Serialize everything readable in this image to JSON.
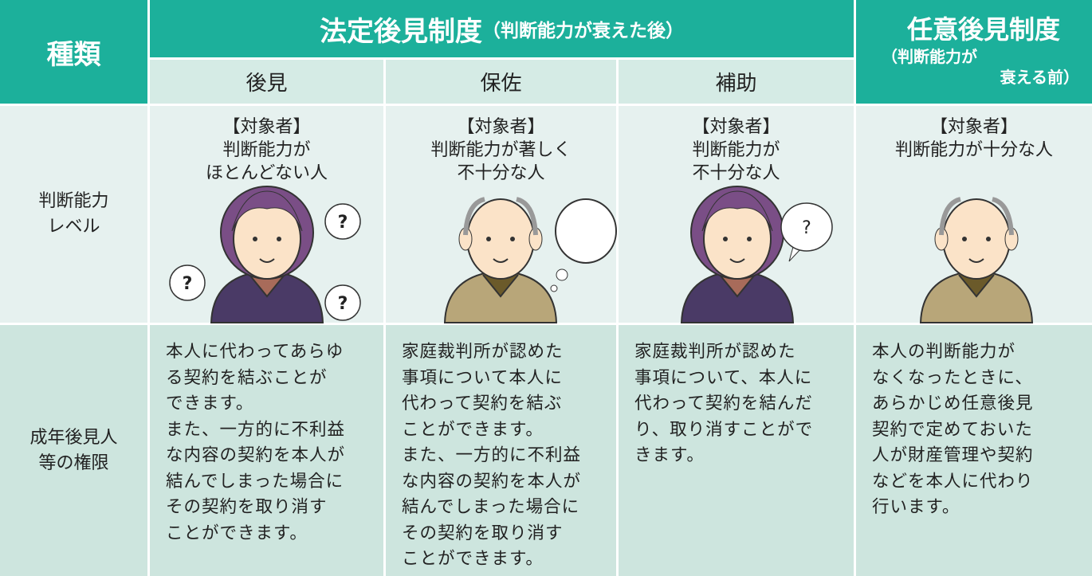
{
  "header": {
    "type_label": "種類",
    "statutory": {
      "title": "法定後見制度",
      "note": "（判断能力が衰えた後）",
      "kinds": [
        "後見",
        "保佐",
        "補助"
      ]
    },
    "voluntary": {
      "title": "任意後見制度",
      "note": [
        "（判断能力が",
        "衰える前）"
      ]
    }
  },
  "rows": [
    {
      "label": [
        "判断能力",
        "レベル"
      ],
      "cells": [
        {
          "lines": [
            "【対象者】",
            "判断能力が",
            "ほとんどない人"
          ],
          "marks": [
            "?",
            "?",
            "?"
          ]
        },
        {
          "lines": [
            "【対象者】",
            "判断能力が著しく",
            "不十分な人"
          ]
        },
        {
          "lines": [
            "【対象者】",
            "判断能力が",
            "不十分な人"
          ],
          "marks": [
            "?"
          ]
        },
        {
          "lines": [
            "【対象者】",
            "判断能力が十分な人"
          ]
        }
      ]
    },
    {
      "label": [
        "成年後見人",
        "等の権限"
      ],
      "cells": [
        {
          "lines": [
            "本人に代わってあらゆ",
            "る契約を結ぶことが",
            "できます。",
            "また、一方的に不利益",
            "な内容の契約を本人が",
            "結んでしまった場合に",
            "その契約を取り消す",
            "ことができます。"
          ]
        },
        {
          "lines": [
            "家庭裁判所が認めた",
            "事項について本人に",
            "代わって契約を結ぶ",
            "ことができます。",
            "また、一方的に不利益",
            "な内容の契約を本人が",
            "結んでしまった場合に",
            "その契約を取り消す",
            "ことができます。"
          ]
        },
        {
          "lines": [
            "家庭裁判所が認めた",
            "事項について、本人に",
            "代わって契約を結んだ",
            "り、取り消すことがで",
            "きます。"
          ]
        },
        {
          "lines": [
            "本人の判断能力が",
            "なくなったときに、",
            "あらかじめ任意後見",
            "契約で定めておいた",
            "人が財産管理や契約",
            "などを本人に代わり",
            "行います。"
          ]
        }
      ]
    }
  ]
}
